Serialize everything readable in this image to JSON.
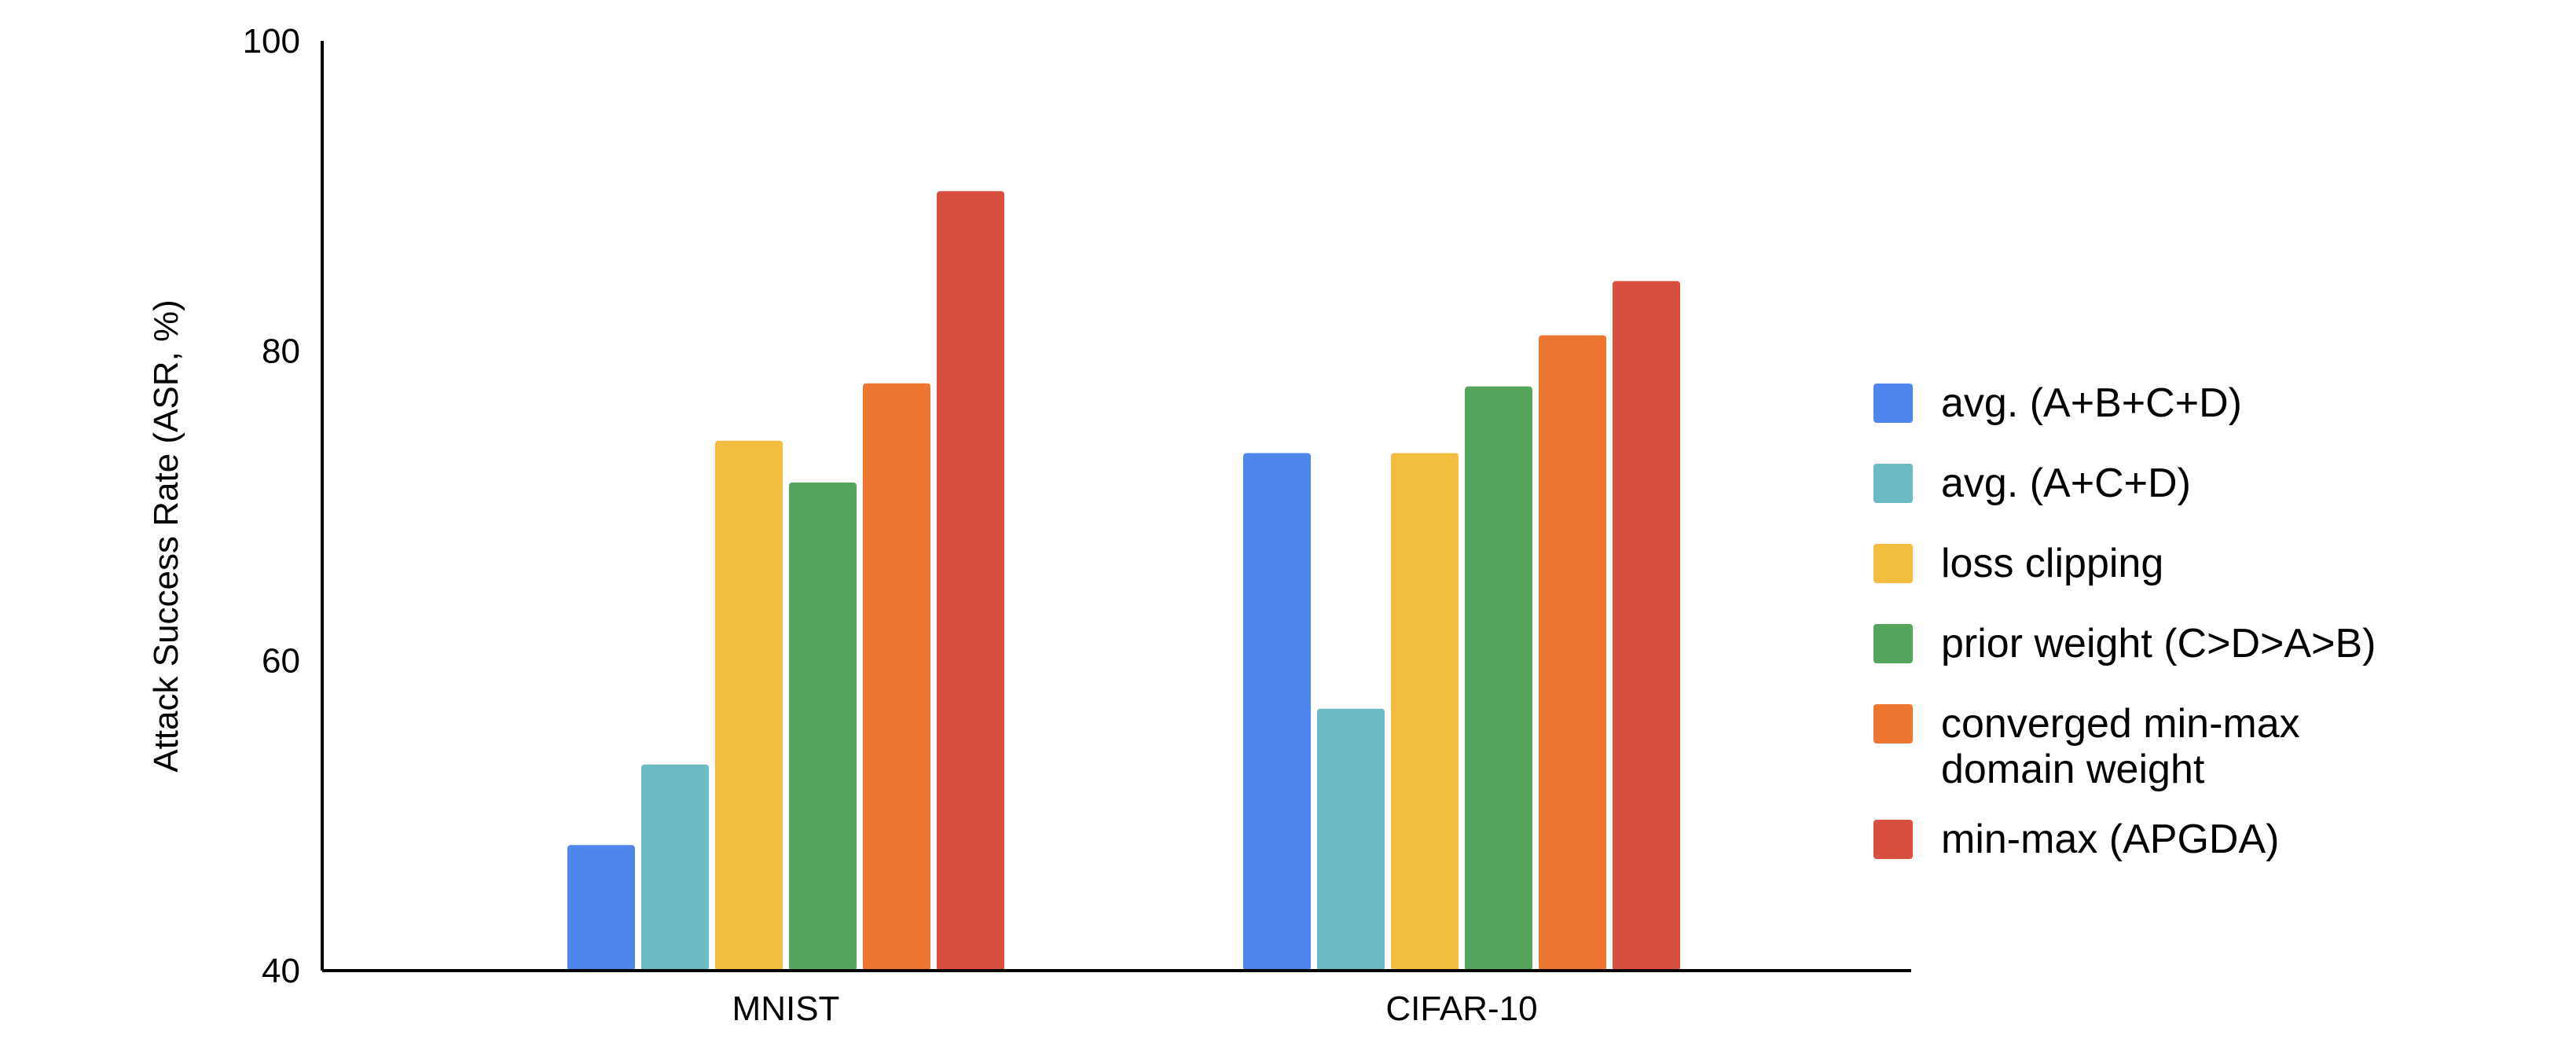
{
  "chart_data": {
    "type": "bar",
    "title": "",
    "xlabel": "",
    "ylabel": "Attack Success Rate (ASR, %)",
    "ylim": [
      40,
      100
    ],
    "yticks": [
      40,
      60,
      80,
      100
    ],
    "grid": false,
    "legend_position": "right",
    "categories": [
      "MNIST",
      "CIFAR-10"
    ],
    "series": [
      {
        "name": "avg. (A+B+C+D)",
        "name_lines": [
          "avg. (A+B+C+D)"
        ],
        "color": "#4f86ec",
        "values": [
          48.1,
          73.4
        ]
      },
      {
        "name": "avg. (A+C+D)",
        "name_lines": [
          "avg. (A+C+D)"
        ],
        "color": "#6bbac4",
        "values": [
          53.3,
          56.9
        ]
      },
      {
        "name": "loss clipping",
        "name_lines": [
          "loss clipping"
        ],
        "color": "#f3bd42",
        "values": [
          74.2,
          73.4
        ]
      },
      {
        "name": "prior weight (C>D>A>B)",
        "name_lines": [
          "prior weight (C>D>A>B)"
        ],
        "color": "#56a55d",
        "values": [
          71.5,
          77.7
        ]
      },
      {
        "name": "converged min-max domain weight",
        "name_lines": [
          "converged min-max",
          "domain weight"
        ],
        "color": "#ed7631",
        "values": [
          77.9,
          81.0
        ]
      },
      {
        "name": "min-max (APGDA)",
        "name_lines": [
          "min-max (APGDA)"
        ],
        "color": "#d84f3f",
        "values": [
          90.3,
          84.5
        ]
      }
    ]
  }
}
